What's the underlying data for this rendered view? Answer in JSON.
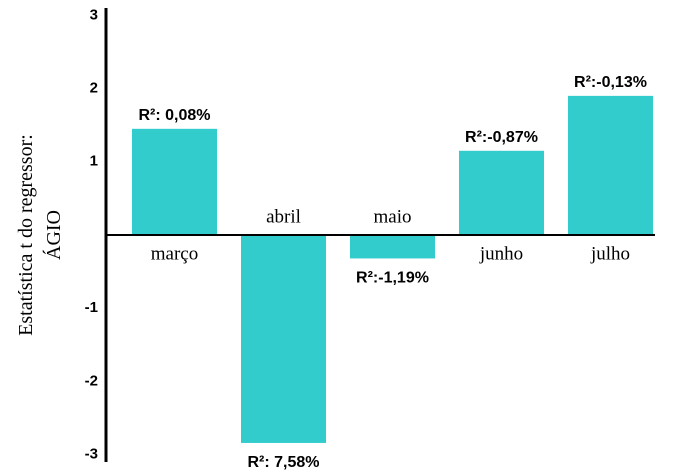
{
  "chart_data": {
    "type": "bar",
    "y_label": [
      "Estatística t  do regressor:",
      "ÁGIO"
    ],
    "categories": [
      "março",
      "abril",
      "maio",
      "junho",
      "julho"
    ],
    "values": [
      1.45,
      -2.84,
      -0.32,
      1.15,
      1.9
    ],
    "annotations": [
      "R²: 0,08%",
      "R²: 7,58%",
      "R²:-1,19%",
      "R²:-0,87%",
      "R²:-0,13%"
    ],
    "color": "#33cccc",
    "ylim": [
      -3.1,
      3.1
    ],
    "yticks": [
      -3,
      -2,
      -1,
      0,
      1,
      2,
      3
    ],
    "grid": false
  }
}
